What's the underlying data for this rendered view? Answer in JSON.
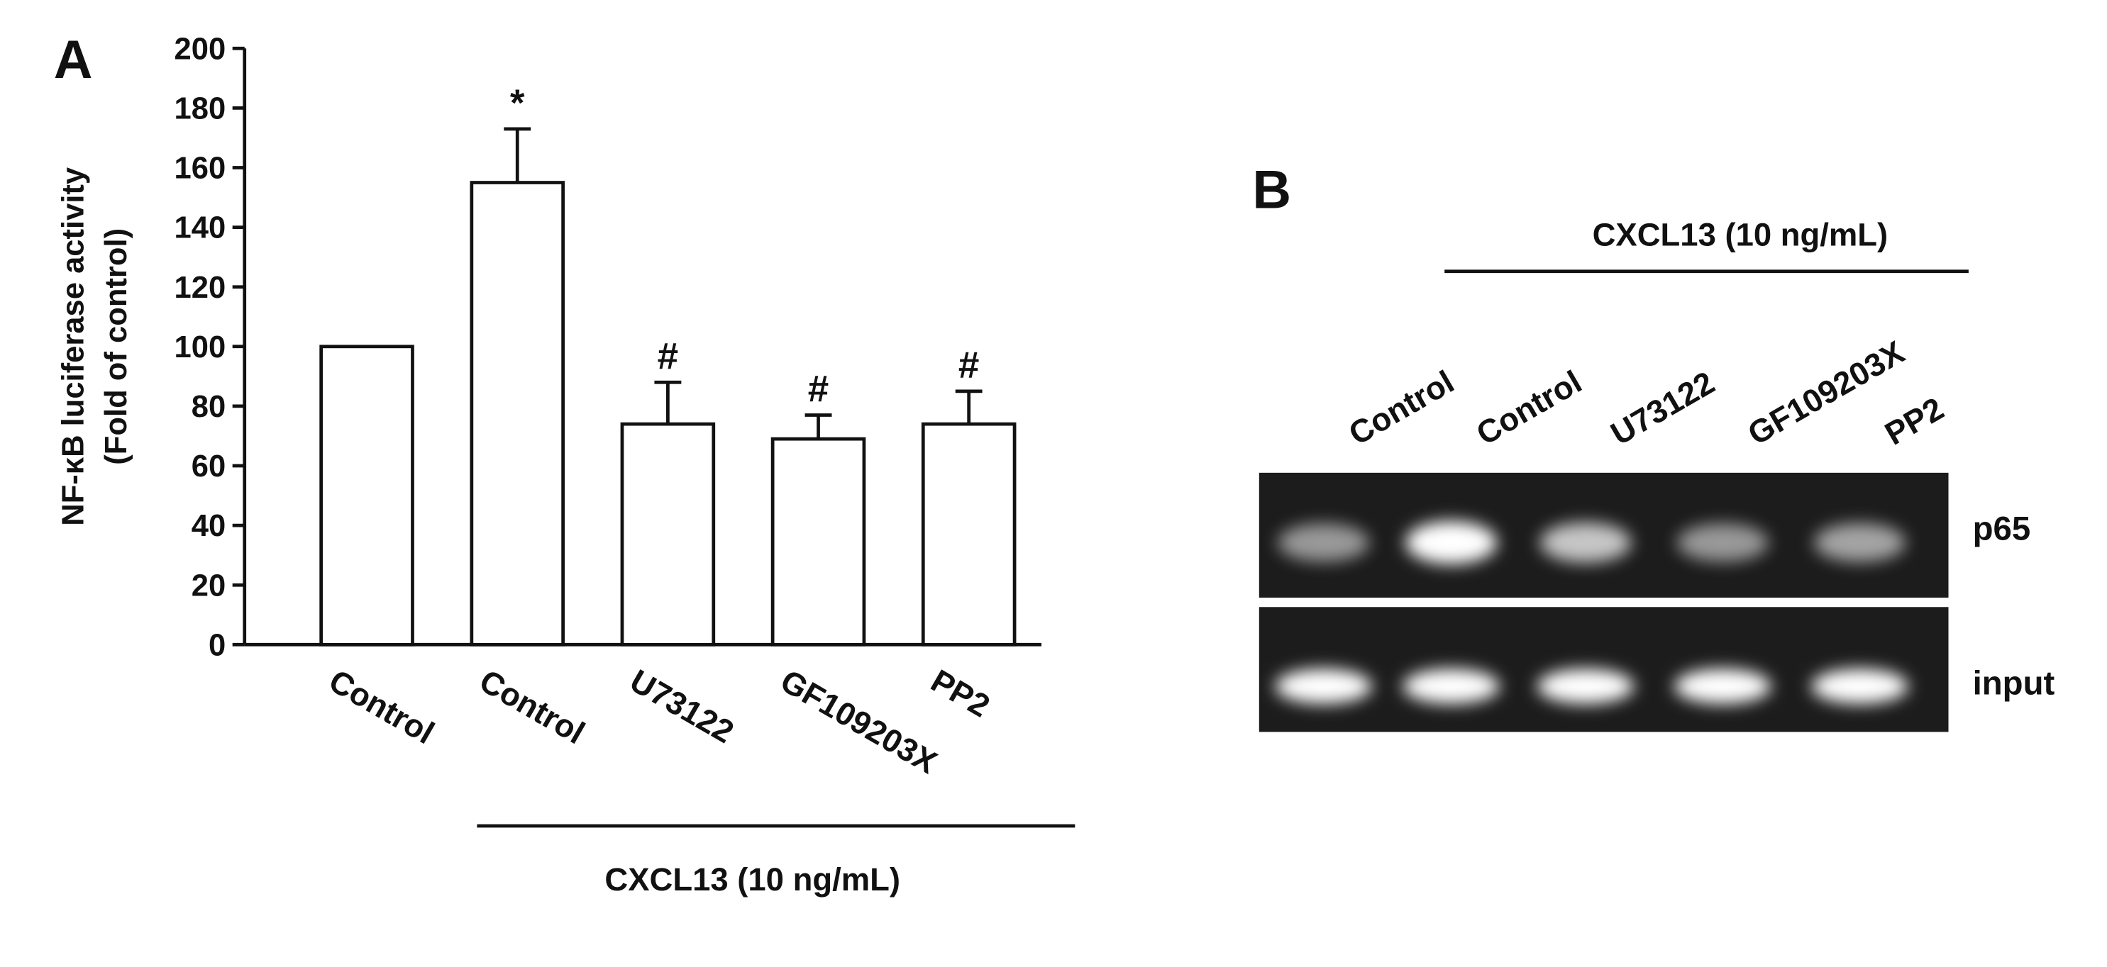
{
  "chart_data": {
    "type": "bar",
    "panel_label": "A",
    "ylabel": [
      "NF-κB luciferase activity",
      "(Fold of control)"
    ],
    "categories": [
      "Control",
      "Control",
      "U73122",
      "GF109203X",
      "PP2"
    ],
    "values": [
      100,
      155,
      74,
      69,
      74
    ],
    "errors": [
      null,
      18,
      14,
      8,
      11
    ],
    "markers": [
      null,
      "*",
      "#",
      "#",
      "#"
    ],
    "group_label": "CXCL13 (10 ng/mL)",
    "color": "#ffffff",
    "ylim": [
      0,
      200
    ],
    "yticks": [
      0,
      20,
      40,
      60,
      80,
      100,
      120,
      140,
      160,
      180,
      200
    ]
  },
  "panel_b": {
    "panel_label": "B",
    "group_label": "CXCL13 (10 ng/mL)",
    "lanes": [
      "Control",
      "Control",
      "U73122",
      "GF109203X",
      "PP2"
    ],
    "rows": [
      "p65",
      "input"
    ]
  }
}
